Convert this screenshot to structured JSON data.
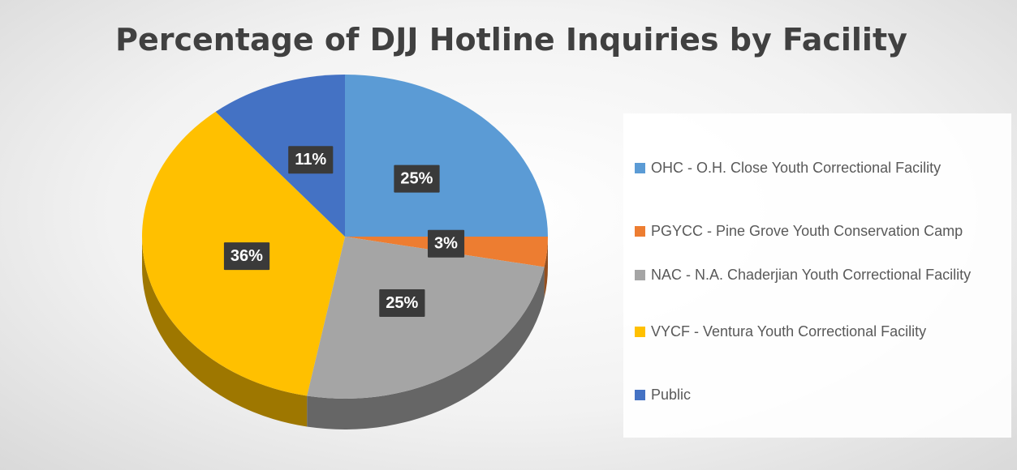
{
  "chart_data": {
    "type": "pie",
    "title": "Percentage of DJJ Hotline Inquiries by Facility",
    "categories": [
      "OHC - O.H. Close Youth Correctional Facility",
      "PGYCC - Pine Grove Youth Conservation Camp",
      "NAC - N.A. Chaderjian Youth Correctional Facility",
      "VYCF - Ventura Youth Correctional Facility",
      "Public"
    ],
    "values": [
      25,
      3,
      25,
      36,
      11
    ],
    "value_labels": [
      "25%",
      "3%",
      "25%",
      "36%",
      "11%"
    ],
    "colors": [
      "#5b9bd5",
      "#ed7d31",
      "#a5a5a5",
      "#ffc000",
      "#4472c4"
    ],
    "legend": "right"
  }
}
